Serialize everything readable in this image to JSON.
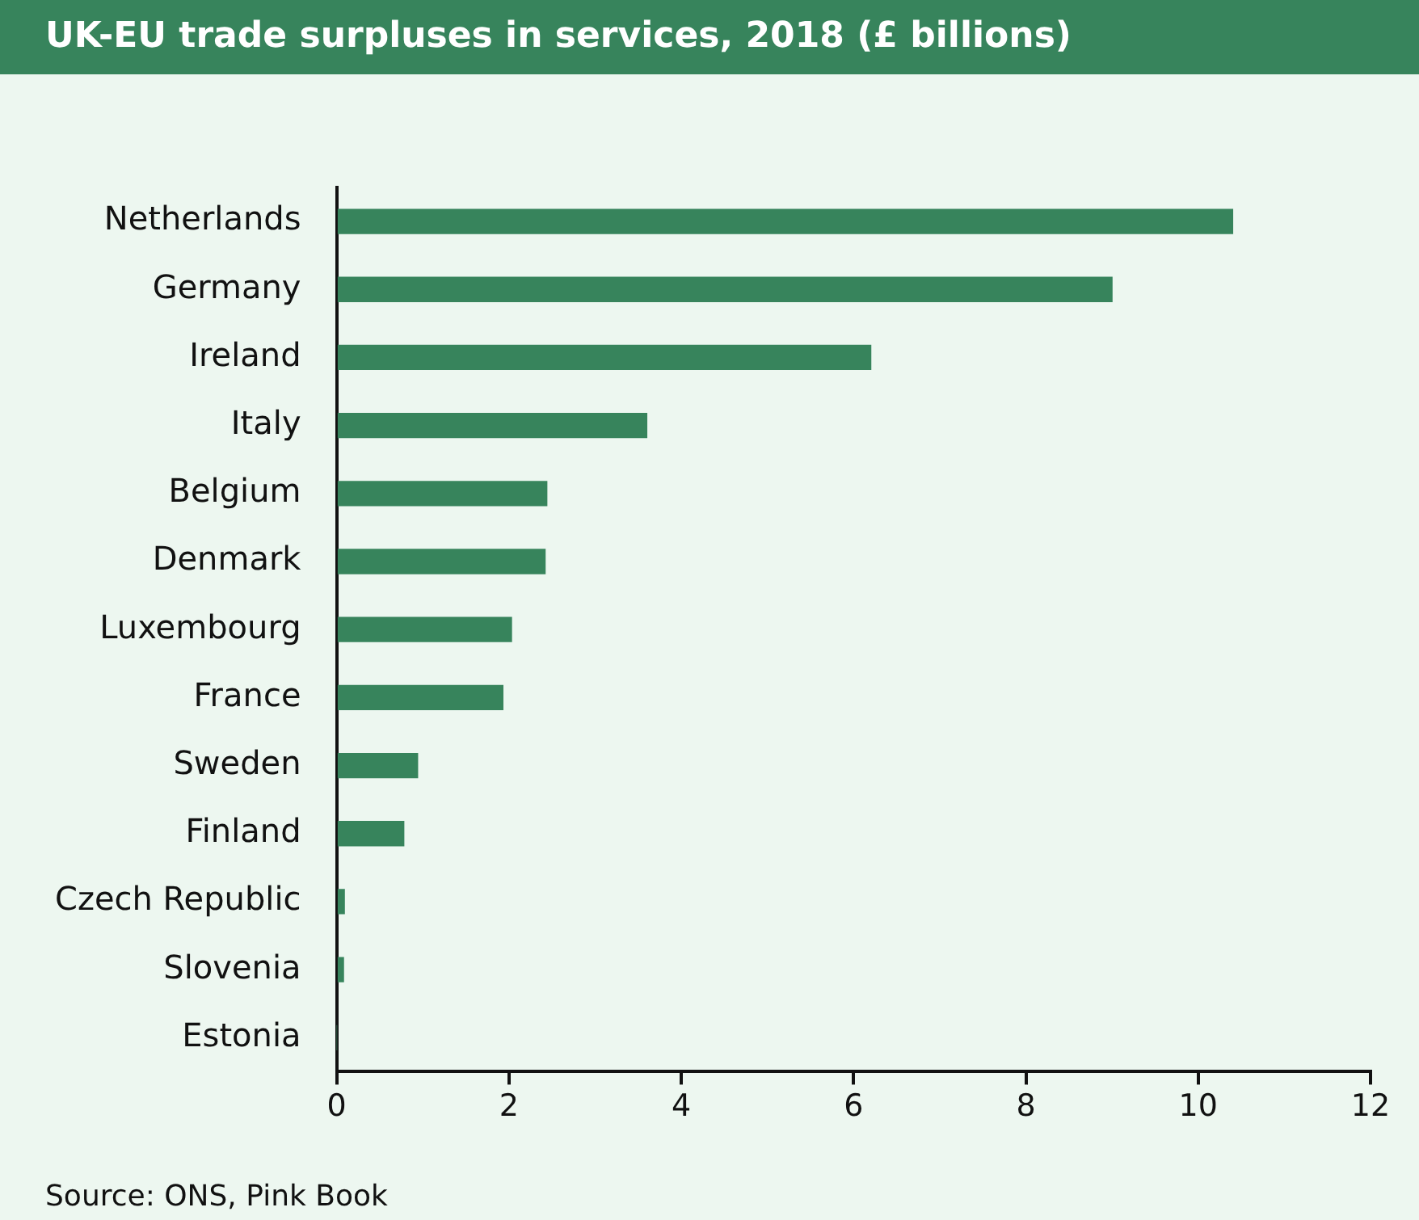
{
  "chart_data": {
    "type": "bar",
    "orientation": "horizontal",
    "title": "UK-EU trade surpluses in services, 2018 (£ billions)",
    "categories": [
      "Netherlands",
      "Germany",
      "Ireland",
      "Italy",
      "Belgium",
      "Denmark",
      "Luxembourg",
      "France",
      "Sweden",
      "Finland",
      "Czech Republic",
      "Slovenia",
      "Estonia"
    ],
    "values": [
      10.4,
      9.0,
      6.2,
      3.6,
      2.44,
      2.42,
      2.03,
      1.93,
      0.94,
      0.78,
      0.09,
      0.08,
      0
    ],
    "color": "#37845c",
    "xlim": [
      0,
      12
    ],
    "xticks": [
      0,
      2,
      4,
      6,
      8,
      10,
      12
    ],
    "grid": false,
    "legend": false,
    "annotations": [
      "Source: ONS, Pink Book"
    ]
  }
}
